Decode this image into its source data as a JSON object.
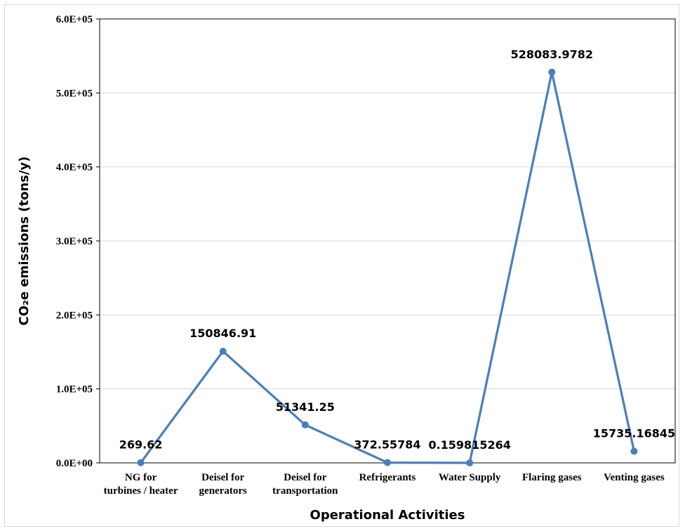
{
  "chart_data": {
    "type": "line",
    "categories": [
      [
        "NG  for",
        "turbines / heater"
      ],
      [
        "Deisel for",
        "generators"
      ],
      [
        "Deisel for",
        "transportation"
      ],
      [
        "Refrigerants"
      ],
      [
        "Water Supply"
      ],
      [
        "Flaring gases"
      ],
      [
        "Venting gases"
      ]
    ],
    "values": [
      269.62,
      150846.91,
      51341.25,
      372.55784,
      0.159815264,
      528083.9782,
      15735.16845
    ],
    "data_labels": [
      "269.62",
      "150846.91",
      "51341.25",
      "372.55784",
      "0.159815264",
      "528083.9782",
      "15735.16845"
    ],
    "ylim": [
      0,
      600000
    ],
    "yticks": [
      "0.0E+00",
      "1.0E+05",
      "2.0E+05",
      "3.0E+05",
      "4.0E+05",
      "5.0E+05",
      "6.0E+05"
    ],
    "xlabel": "Operational Activities",
    "ylabel": "CO₂e emissions (tons/y)",
    "title": "",
    "grid": true,
    "series_color": "#4a7ebb",
    "grid_color": "#d9d9d9"
  }
}
